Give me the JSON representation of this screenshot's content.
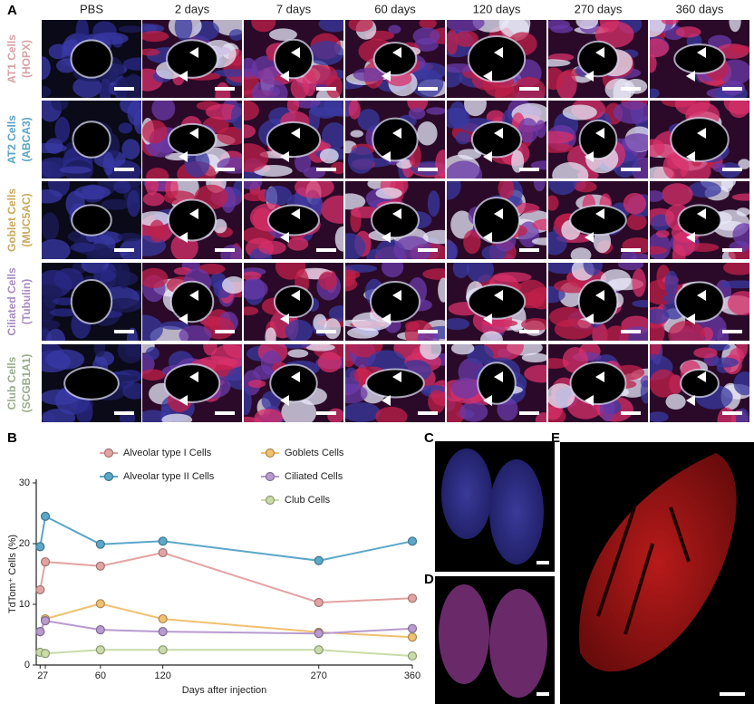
{
  "panel_labels": {
    "a": "A",
    "b": "B",
    "c": "C",
    "d": "D",
    "e": "E"
  },
  "panel_a": {
    "columns": [
      "PBS",
      "2 days",
      "7 days",
      "60 days",
      "120 days",
      "270 days",
      "360 days"
    ],
    "rows": [
      {
        "name": "AT1 Cells",
        "marker": "(HOPX)",
        "color": "#d9a0a3"
      },
      {
        "name": "AT2 Cells",
        "marker": "(ABCA3)",
        "color": "#5ba3c6"
      },
      {
        "name": "Goblet Cells",
        "marker": "(MUC5AC)",
        "color": "#c9a85a"
      },
      {
        "name": "Ciliated Cells",
        "marker": "(Tubulin)",
        "color": "#a88ac0"
      },
      {
        "name": "Club Cells",
        "marker": "(SCGB1A1)",
        "color": "#99ab8a"
      }
    ]
  },
  "chart_data": {
    "type": "line",
    "x_label": "Days after injection",
    "y_label": "TdTom⁺ Cells (%)",
    "x": [
      2,
      7,
      60,
      120,
      270,
      360
    ],
    "xlim": [
      0,
      360
    ],
    "xticks": [
      2,
      7,
      60,
      120,
      270,
      360
    ],
    "ylim": [
      0,
      30
    ],
    "yticks": [
      0,
      10,
      20,
      30
    ],
    "series": [
      {
        "name": "Alveolar type I Cells",
        "color": "#e3a3a3",
        "values": [
          12.4,
          17.0,
          16.3,
          18.5,
          10.3,
          11.0
        ]
      },
      {
        "name": "Alveolar type II Cells",
        "color": "#5aa7c9",
        "values": [
          19.5,
          24.5,
          19.9,
          20.4,
          17.2,
          20.4
        ]
      },
      {
        "name": "Goblets Cells",
        "color": "#f0c070",
        "values": [
          5.5,
          7.6,
          10.1,
          7.6,
          5.4,
          4.6
        ]
      },
      {
        "name": "Ciliated Cells",
        "color": "#b89ad0",
        "values": [
          5.5,
          7.3,
          5.8,
          5.5,
          5.2,
          6.0
        ]
      },
      {
        "name": "Club Cells",
        "color": "#c9dba8",
        "values": [
          2.1,
          1.9,
          2.5,
          2.5,
          2.5,
          1.5
        ]
      }
    ]
  }
}
